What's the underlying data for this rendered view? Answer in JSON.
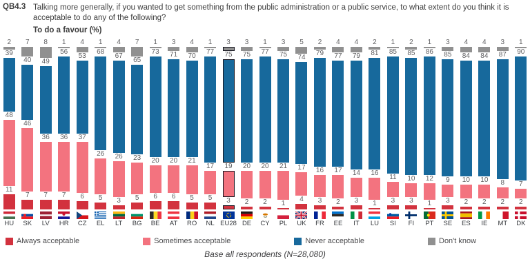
{
  "header": {
    "code": "QB4.3",
    "question": "Talking more generally, if you wanted to get something from the public administration or a public service, to what extent do you think it is acceptable to do any of the following?",
    "subtitle": "To do a favour (%)"
  },
  "legend": {
    "items": [
      {
        "label": "Always acceptable",
        "color": "#d2323e"
      },
      {
        "label": "Sometimes acceptable",
        "color": "#f3737f"
      },
      {
        "label": "Never acceptable",
        "color": "#17699c"
      },
      {
        "label": "Don't know",
        "color": "#909090"
      }
    ]
  },
  "base_note": "Base all respondents (N=28,080)",
  "chart_data": {
    "type": "bar",
    "stacked": true,
    "unit": "%",
    "total_per_category": 100,
    "title": "To do a favour (%)",
    "highlighted_category": "EU28",
    "stack_order_bottom_to_top": [
      "Always acceptable",
      "Sometimes acceptable",
      "Never acceptable",
      "Don't know"
    ],
    "categories": [
      "HU",
      "SK",
      "LV",
      "HR",
      "CZ",
      "EL",
      "LT",
      "BG",
      "BE",
      "AT",
      "RO",
      "NL",
      "EU28",
      "DE",
      "CY",
      "PL",
      "UK",
      "FR",
      "EE",
      "IT",
      "LU",
      "SI",
      "FI",
      "PT",
      "SE",
      "ES",
      "IE",
      "MT",
      "DK"
    ],
    "series": [
      {
        "name": "Always acceptable",
        "color": "#d2323e",
        "values": [
          11,
          7,
          7,
          7,
          6,
          5,
          3,
          5,
          6,
          6,
          5,
          5,
          3,
          2,
          2,
          1,
          4,
          3,
          2,
          3,
          1,
          3,
          3,
          1,
          3,
          2,
          2,
          2,
          2
        ]
      },
      {
        "name": "Sometimes acceptable",
        "color": "#f3737f",
        "values": [
          48,
          46,
          36,
          36,
          37,
          26,
          26,
          23,
          20,
          20,
          21,
          17,
          19,
          20,
          20,
          21,
          17,
          16,
          17,
          14,
          16,
          11,
          10,
          12,
          9,
          10,
          10,
          8,
          7
        ]
      },
      {
        "name": "Never acceptable",
        "color": "#17699c",
        "values": [
          39,
          40,
          49,
          56,
          53,
          68,
          67,
          65,
          73,
          71,
          70,
          77,
          75,
          75,
          77,
          75,
          74,
          79,
          77,
          79,
          81,
          85,
          85,
          86,
          85,
          84,
          84,
          87,
          90
        ]
      },
      {
        "name": "Don't know",
        "color": "#909090",
        "values": [
          2,
          7,
          8,
          1,
          4,
          1,
          4,
          7,
          1,
          3,
          4,
          1,
          3,
          3,
          1,
          3,
          5,
          2,
          4,
          4,
          2,
          1,
          2,
          1,
          3,
          4,
          4,
          3,
          1
        ]
      }
    ],
    "flags": [
      {
        "t": "h",
        "c": [
          "#ce2939",
          "#ffffff",
          "#477050"
        ]
      },
      {
        "t": "h",
        "c": [
          "#ffffff",
          "#0b4ea2",
          "#ee1c25"
        ],
        "e": {
          "c": "#ee1c25",
          "x": 5,
          "y": 5.5,
          "r": 2
        }
      },
      {
        "t": "h",
        "c": [
          "#9d2235",
          "#ffffff",
          "#9d2235"
        ],
        "w": [
          2,
          1,
          2
        ]
      },
      {
        "t": "h",
        "c": [
          "#c8102e",
          "#ffffff",
          "#171796"
        ],
        "e": {
          "c": "#c8102e",
          "x": 8.5,
          "y": 4,
          "r": 2
        }
      },
      {
        "t": "cz",
        "c": [
          "#ffffff",
          "#d7141a",
          "#11457e"
        ]
      },
      {
        "t": "el",
        "c": [
          "#0d5eaf",
          "#ffffff"
        ]
      },
      {
        "t": "h",
        "c": [
          "#fdb913",
          "#006a44",
          "#c1272d"
        ]
      },
      {
        "t": "h",
        "c": [
          "#ffffff",
          "#00966e",
          "#d62612"
        ]
      },
      {
        "t": "v",
        "c": [
          "#2d2926",
          "#fdda24",
          "#ef3340"
        ]
      },
      {
        "t": "h",
        "c": [
          "#ef3340",
          "#ffffff",
          "#ef3340"
        ]
      },
      {
        "t": "v",
        "c": [
          "#002b7f",
          "#fcd116",
          "#ce1126"
        ]
      },
      {
        "t": "h",
        "c": [
          "#ae1c28",
          "#ffffff",
          "#21468b"
        ]
      },
      {
        "t": "eu",
        "c": [
          "#003399",
          "#ffcc00"
        ]
      },
      {
        "t": "h",
        "c": [
          "#1f1a17",
          "#dd0000",
          "#ffce00"
        ]
      },
      {
        "t": "cy",
        "c": [
          "#ffffff",
          "#d57800",
          "#4e5b31"
        ]
      },
      {
        "t": "h",
        "c": [
          "#ffffff",
          "#d4213d"
        ]
      },
      {
        "t": "uk",
        "c": [
          "#012169",
          "#ffffff",
          "#c8102e"
        ]
      },
      {
        "t": "v",
        "c": [
          "#002395",
          "#ffffff",
          "#ed2939"
        ]
      },
      {
        "t": "h",
        "c": [
          "#0072ce",
          "#2d2926",
          "#ffffff"
        ]
      },
      {
        "t": "v",
        "c": [
          "#009246",
          "#ffffff",
          "#ce2b37"
        ]
      },
      {
        "t": "h",
        "c": [
          "#ef3340",
          "#ffffff",
          "#00a2e1"
        ]
      },
      {
        "t": "h",
        "c": [
          "#ffffff",
          "#005da4",
          "#ed1c24"
        ],
        "e": {
          "c": "#003da5",
          "x": 4.5,
          "y": 4,
          "r": 1.7
        }
      },
      {
        "t": "cross",
        "c": [
          "#ffffff",
          "#002f6c"
        ]
      },
      {
        "t": "pt",
        "c": [
          "#046a38",
          "#da291c",
          "#ffe900"
        ]
      },
      {
        "t": "cross",
        "c": [
          "#005293",
          "#fecb00"
        ]
      },
      {
        "t": "h",
        "c": [
          "#aa151b",
          "#f1bf00",
          "#aa151b"
        ],
        "w": [
          1,
          2,
          1
        ]
      },
      {
        "t": "v",
        "c": [
          "#009a49",
          "#ffffff",
          "#ff7900"
        ]
      },
      {
        "t": "v",
        "c": [
          "#ffffff",
          "#cf142b"
        ]
      },
      {
        "t": "cross",
        "c": [
          "#c8102e",
          "#ffffff"
        ]
      }
    ]
  }
}
